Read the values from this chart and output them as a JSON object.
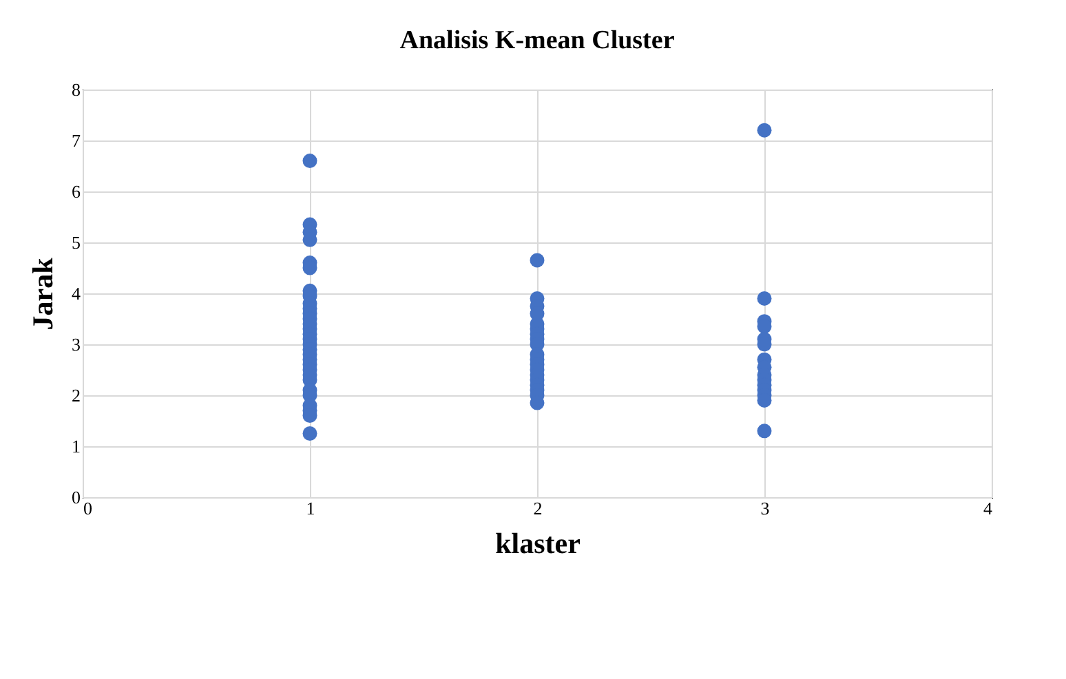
{
  "chart_data": {
    "type": "scatter",
    "title": "Analisis K-mean Cluster",
    "xlabel": "klaster",
    "ylabel": "Jarak",
    "x": [
      1,
      1,
      1,
      1,
      1,
      1,
      1,
      1,
      1,
      1,
      1,
      1,
      1,
      1,
      1,
      1,
      1,
      1,
      1,
      1,
      1,
      1,
      1,
      1,
      1,
      1,
      1,
      1,
      1,
      1,
      2,
      2,
      2,
      2,
      2,
      2,
      2,
      2,
      2,
      2,
      2,
      2,
      2,
      2,
      2,
      2,
      2,
      2,
      2,
      3,
      3,
      3,
      3,
      3,
      3,
      3,
      3,
      3,
      3,
      3,
      3,
      3,
      3,
      3
    ],
    "values": [
      6.6,
      5.35,
      5.2,
      5.05,
      4.6,
      4.5,
      4.05,
      3.95,
      3.8,
      3.7,
      3.6,
      3.5,
      3.4,
      3.3,
      3.2,
      3.1,
      3.0,
      2.9,
      2.8,
      2.7,
      2.6,
      2.5,
      2.4,
      2.3,
      2.1,
      2.0,
      1.8,
      1.7,
      1.6,
      1.25,
      4.65,
      3.9,
      3.75,
      3.6,
      3.4,
      3.3,
      3.2,
      3.1,
      3.0,
      2.8,
      2.7,
      2.6,
      2.5,
      2.4,
      2.3,
      2.2,
      2.1,
      2.0,
      1.85,
      7.2,
      3.9,
      3.45,
      3.35,
      3.1,
      3.0,
      2.7,
      2.55,
      2.4,
      2.3,
      2.2,
      2.1,
      2.0,
      1.9,
      1.3
    ],
    "color": "#4472c4",
    "marker": "circle",
    "xlim": [
      0,
      4
    ],
    "xticks": [
      0,
      1,
      2,
      3,
      4
    ],
    "ylim": [
      0,
      8
    ],
    "yticks": [
      0,
      1,
      2,
      3,
      4,
      5,
      6,
      7,
      8
    ],
    "grid": true
  }
}
